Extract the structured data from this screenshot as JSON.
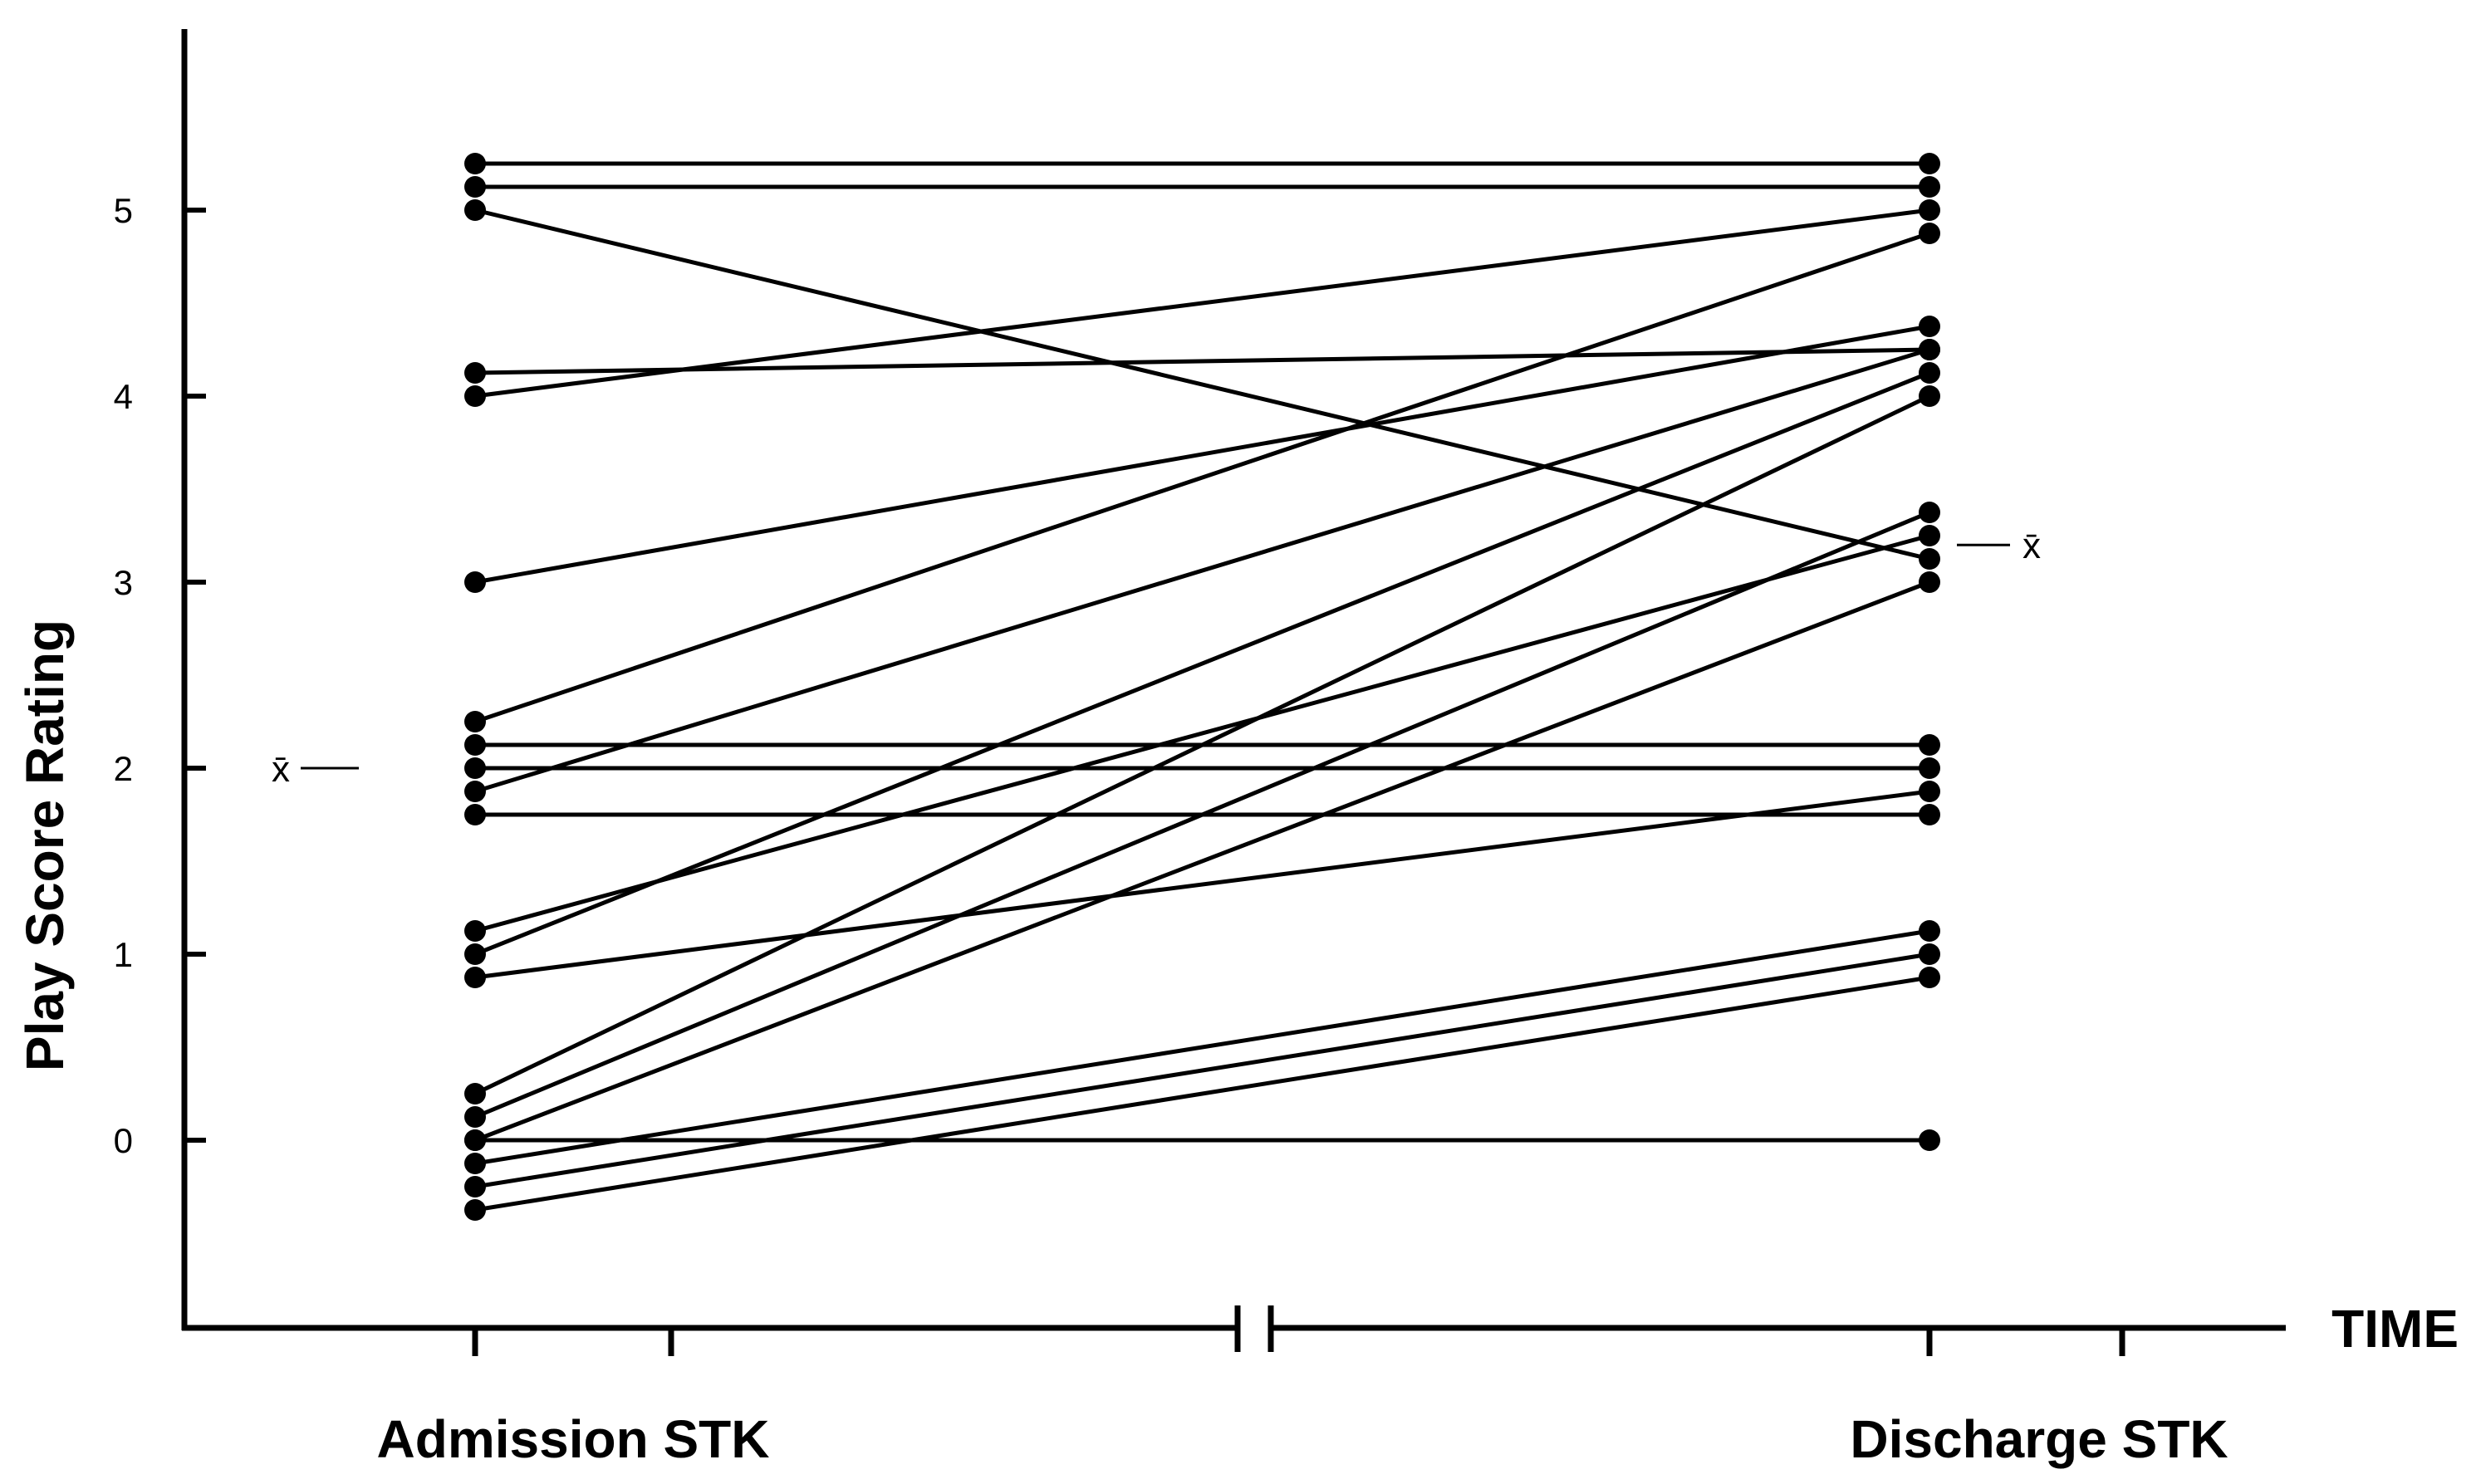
{
  "chart_data": {
    "type": "line",
    "ylabel": "Play Score Rating",
    "xlabel": "TIME",
    "categories": [
      "Admission STK",
      "Discharge STK"
    ],
    "yticks": [
      "0",
      "1",
      "2",
      "3",
      "4",
      "5"
    ],
    "ylim": [
      -0.8,
      6.0
    ],
    "mean_marker": "x̄",
    "admission_mean": 2.0,
    "discharge_mean": 3.2,
    "series": [
      {
        "values": [
          5.25,
          5.25
        ]
      },
      {
        "values": [
          5.125,
          5.125
        ]
      },
      {
        "values": [
          5.0,
          3.125
        ]
      },
      {
        "values": [
          4.125,
          4.25
        ]
      },
      {
        "values": [
          4.0,
          5.0
        ]
      },
      {
        "values": [
          3.0,
          4.375
        ]
      },
      {
        "values": [
          2.25,
          4.875
        ]
      },
      {
        "values": [
          2.125,
          2.125
        ]
      },
      {
        "values": [
          2.0,
          2.0
        ]
      },
      {
        "values": [
          1.875,
          4.25
        ]
      },
      {
        "values": [
          1.75,
          1.75
        ]
      },
      {
        "values": [
          1.125,
          3.25
        ]
      },
      {
        "values": [
          1.0,
          4.125
        ]
      },
      {
        "values": [
          0.875,
          1.875
        ]
      },
      {
        "values": [
          0.25,
          4.0
        ]
      },
      {
        "values": [
          0.125,
          3.375
        ]
      },
      {
        "values": [
          0.0,
          3.0
        ]
      },
      {
        "values": [
          0.0,
          0.0
        ]
      },
      {
        "values": [
          -0.125,
          1.125
        ]
      },
      {
        "values": [
          -0.25,
          1.0
        ]
      },
      {
        "values": [
          -0.375,
          0.875
        ]
      }
    ]
  }
}
